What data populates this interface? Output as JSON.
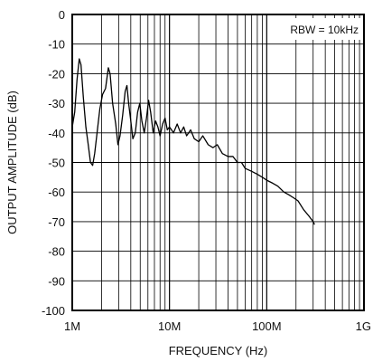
{
  "chart_data": {
    "type": "line",
    "title": "",
    "xlabel": "FREQUENCY (Hz)",
    "ylabel": "OUTPUT AMPLITUDE (dB)",
    "x_scale": "log",
    "xlim": [
      1000000,
      1000000000
    ],
    "ylim": [
      -100,
      0
    ],
    "grid": true,
    "x_ticks": [
      {
        "value": 1000000,
        "label": "1M"
      },
      {
        "value": 10000000,
        "label": "10M"
      },
      {
        "value": 100000000,
        "label": "100M"
      },
      {
        "value": 1000000000,
        "label": "1G"
      }
    ],
    "y_ticks": [
      {
        "value": 0,
        "label": "0"
      },
      {
        "value": -10,
        "label": "-10"
      },
      {
        "value": -20,
        "label": "-20"
      },
      {
        "value": -30,
        "label": "-30"
      },
      {
        "value": -40,
        "label": "-40"
      },
      {
        "value": -50,
        "label": "-50"
      },
      {
        "value": -60,
        "label": "-60"
      },
      {
        "value": -70,
        "label": "-70"
      },
      {
        "value": -80,
        "label": "-80"
      },
      {
        "value": -90,
        "label": "-90"
      },
      {
        "value": -100,
        "label": "-100"
      }
    ],
    "annotation": "RBW = 10kHz",
    "series": [
      {
        "color": "#000000",
        "points": [
          [
            1000000,
            -38
          ],
          [
            1060000,
            -33
          ],
          [
            1120000,
            -22
          ],
          [
            1180000,
            -15
          ],
          [
            1230000,
            -17
          ],
          [
            1300000,
            -28
          ],
          [
            1380000,
            -38
          ],
          [
            1460000,
            -44
          ],
          [
            1540000,
            -50
          ],
          [
            1620000,
            -51
          ],
          [
            1700000,
            -47
          ],
          [
            1800000,
            -40
          ],
          [
            1920000,
            -32
          ],
          [
            2050000,
            -27
          ],
          [
            2200000,
            -25
          ],
          [
            2350000,
            -18
          ],
          [
            2450000,
            -20
          ],
          [
            2600000,
            -30
          ],
          [
            2800000,
            -37
          ],
          [
            2950000,
            -44
          ],
          [
            3100000,
            -41
          ],
          [
            3300000,
            -34
          ],
          [
            3500000,
            -26
          ],
          [
            3650000,
            -24
          ],
          [
            3800000,
            -30
          ],
          [
            4000000,
            -36
          ],
          [
            4200000,
            -42
          ],
          [
            4450000,
            -40
          ],
          [
            4700000,
            -33
          ],
          [
            4950000,
            -30
          ],
          [
            5200000,
            -36
          ],
          [
            5500000,
            -40
          ],
          [
            5800000,
            -35
          ],
          [
            6100000,
            -29
          ],
          [
            6400000,
            -33
          ],
          [
            6800000,
            -40
          ],
          [
            7200000,
            -36
          ],
          [
            7600000,
            -38
          ],
          [
            8000000,
            -41
          ],
          [
            8500000,
            -37
          ],
          [
            9000000,
            -35
          ],
          [
            9500000,
            -39
          ],
          [
            10000000,
            -38
          ],
          [
            11000000,
            -40
          ],
          [
            12000000,
            -37
          ],
          [
            13000000,
            -40
          ],
          [
            14000000,
            -38
          ],
          [
            15000000,
            -41
          ],
          [
            16500000,
            -39
          ],
          [
            18000000,
            -42
          ],
          [
            20000000,
            -43
          ],
          [
            22000000,
            -41
          ],
          [
            25000000,
            -44
          ],
          [
            28000000,
            -45
          ],
          [
            31000000,
            -44
          ],
          [
            35000000,
            -47
          ],
          [
            40000000,
            -48
          ],
          [
            45000000,
            -48
          ],
          [
            50000000,
            -50
          ],
          [
            55000000,
            -50
          ],
          [
            60000000,
            -52
          ],
          [
            70000000,
            -53
          ],
          [
            80000000,
            -54
          ],
          [
            90000000,
            -55
          ],
          [
            100000000,
            -56
          ],
          [
            115000000,
            -57
          ],
          [
            130000000,
            -58
          ],
          [
            150000000,
            -60
          ],
          [
            170000000,
            -61
          ],
          [
            190000000,
            -62
          ],
          [
            210000000,
            -63
          ],
          [
            240000000,
            -66
          ],
          [
            270000000,
            -68
          ],
          [
            300000000,
            -70
          ],
          [
            310000000,
            -71
          ]
        ]
      }
    ]
  }
}
